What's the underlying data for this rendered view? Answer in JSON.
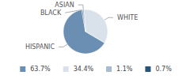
{
  "chart_data": {
    "type": "pie",
    "categories": [
      "HISPANIC",
      "WHITE",
      "ASIAN",
      "BLACK"
    ],
    "values": [
      63.7,
      34.4,
      1.1,
      0.7
    ],
    "value_labels": [
      "63.7%",
      "34.4%",
      "1.1%",
      "0.7%"
    ],
    "colors": [
      "#6a8fb3",
      "#d9e1ea",
      "#a9bccf",
      "#2a5475"
    ],
    "legend": "bottom"
  }
}
